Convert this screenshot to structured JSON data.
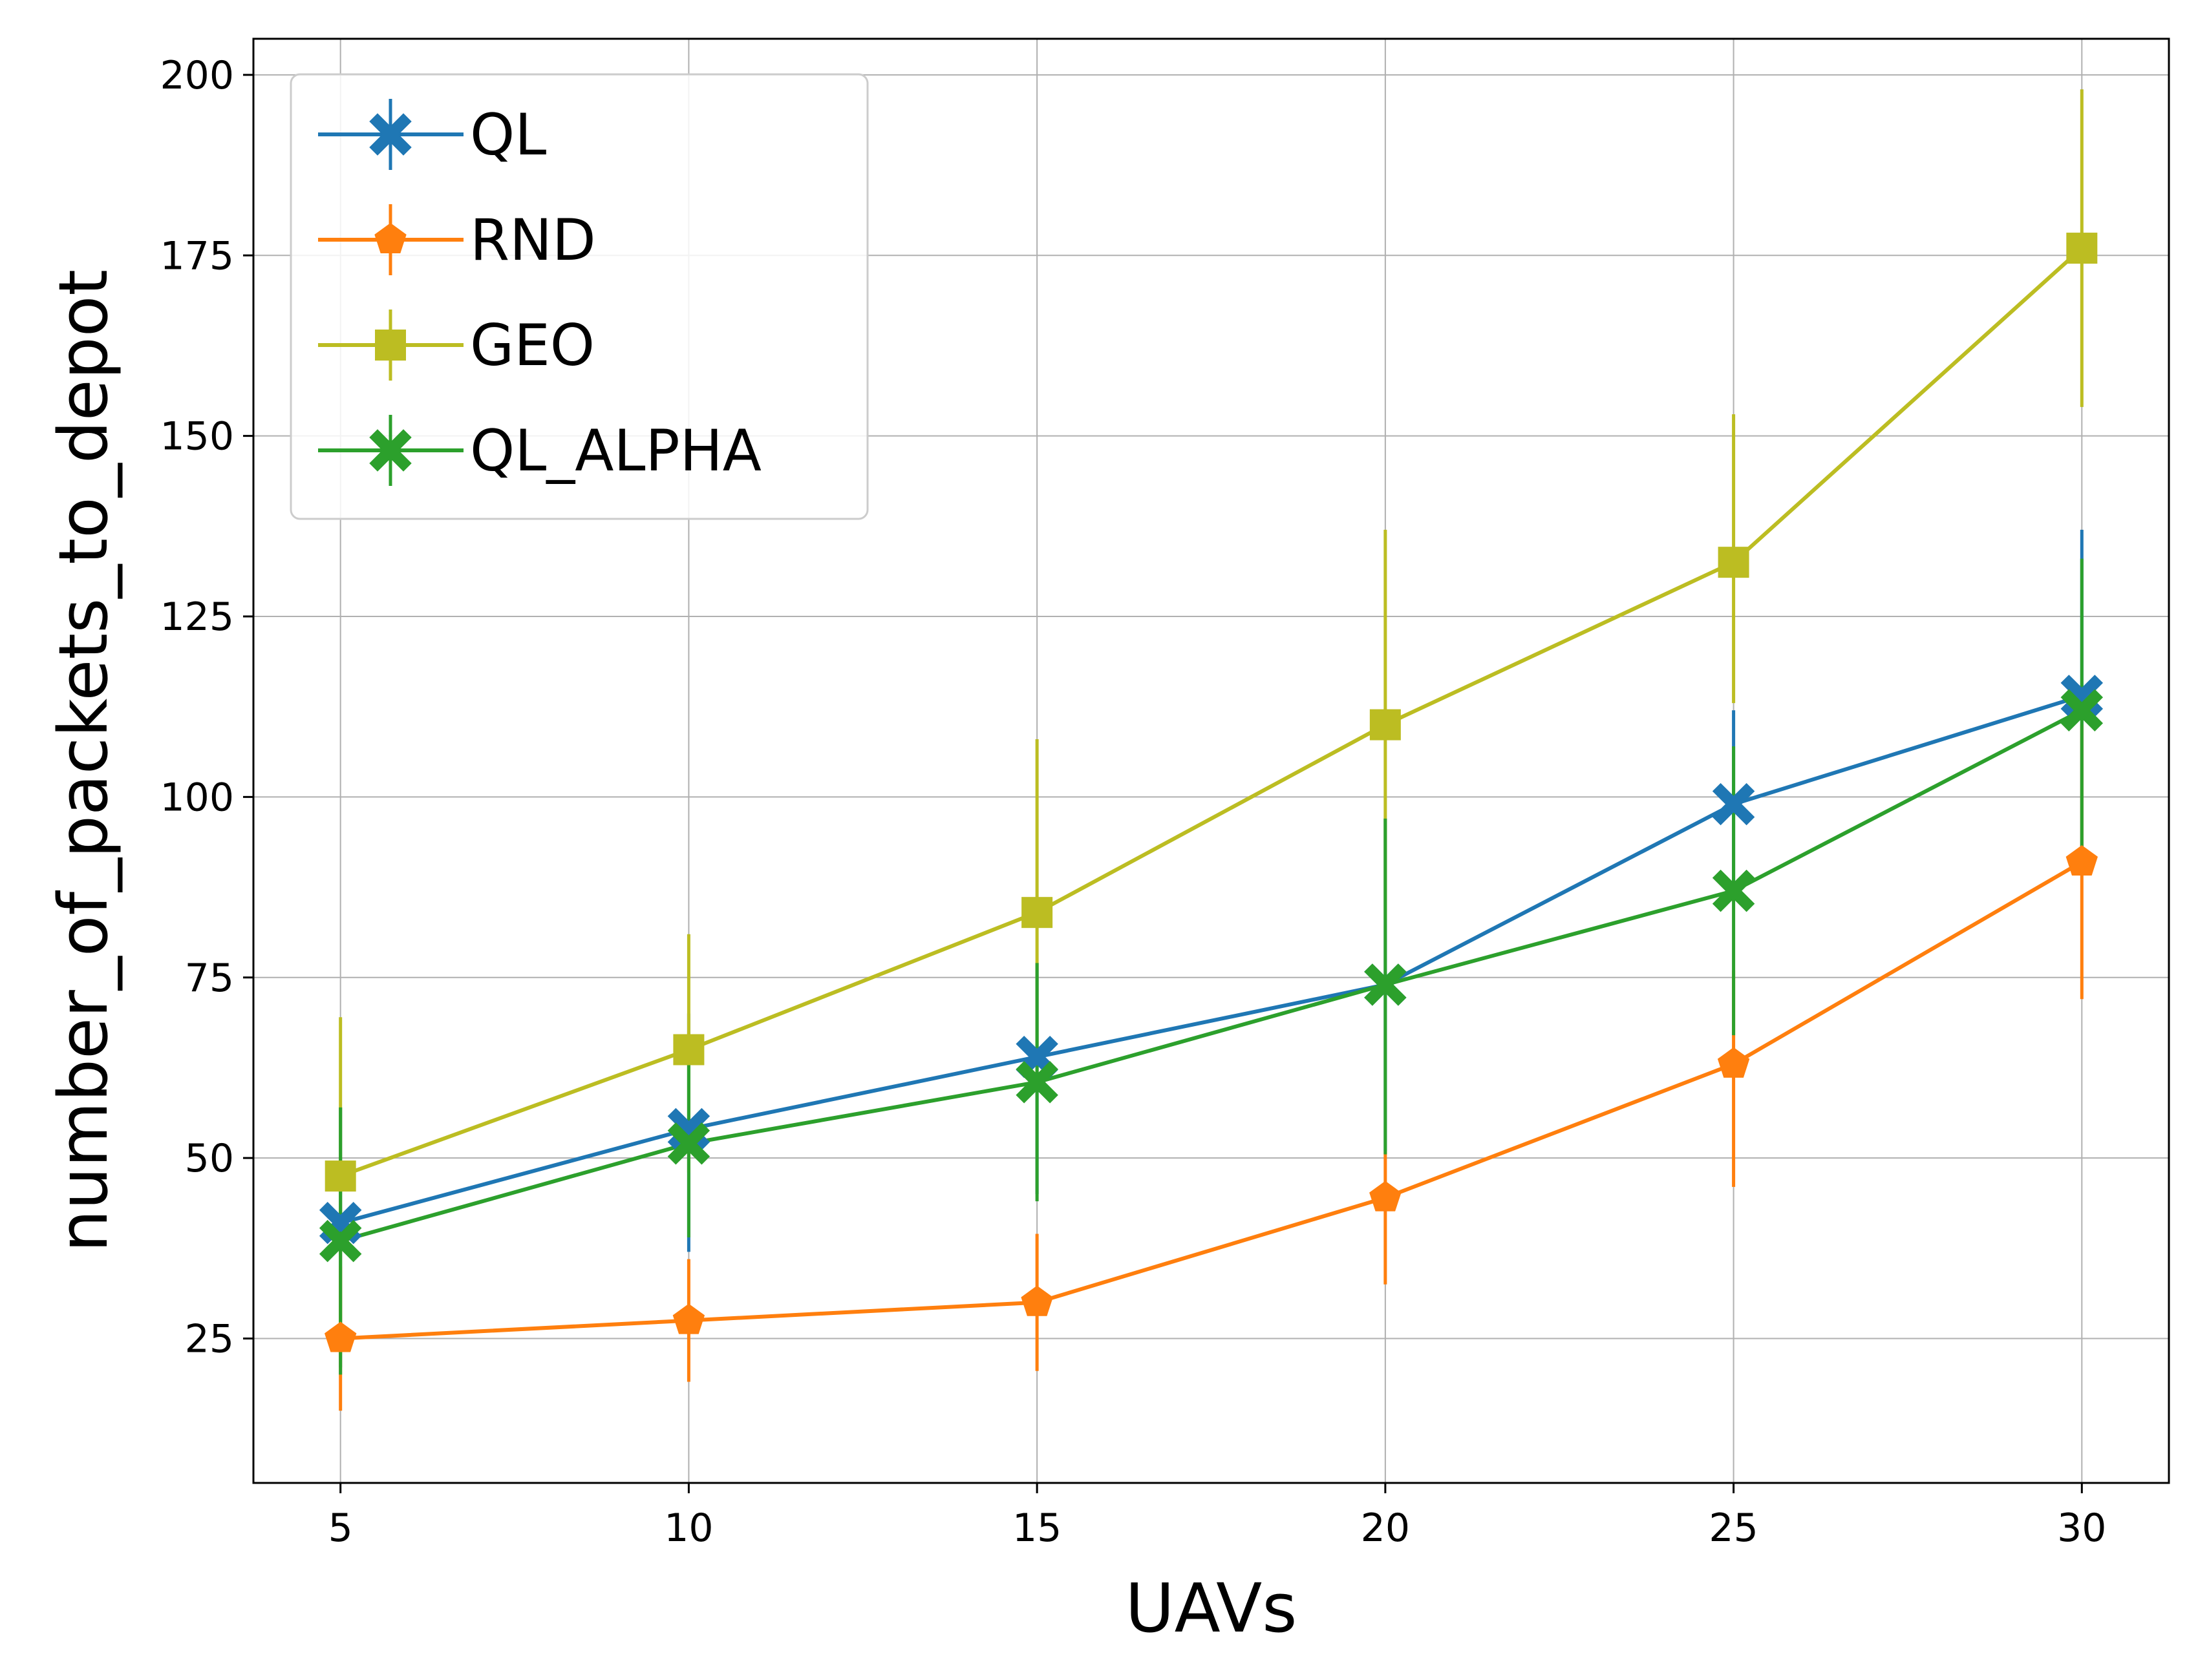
{
  "chart_data": {
    "type": "line",
    "title": "",
    "xlabel": "UAVs",
    "ylabel": "number_of_packets_to_depot",
    "x": [
      5,
      10,
      15,
      20,
      25,
      30
    ],
    "xlim": [
      3.75,
      31.25
    ],
    "ylim": [
      5,
      205
    ],
    "xticks": [
      5,
      10,
      15,
      20,
      25,
      30
    ],
    "yticks": [
      25,
      50,
      75,
      100,
      125,
      150,
      175,
      200
    ],
    "grid": true,
    "legend_position": "top-left",
    "series": [
      {
        "name": "QL",
        "color": "#1f77b4",
        "marker": "x-filled",
        "values": [
          41,
          54,
          64,
          74,
          99,
          114
        ],
        "err_low": [
          21,
          37,
          45,
          51,
          86,
          91
        ],
        "err_high": [
          57,
          70,
          77,
          97,
          112,
          137
        ]
      },
      {
        "name": "RND",
        "color": "#ff7f0e",
        "marker": "pentagon",
        "values": [
          25,
          27.5,
          30,
          44.5,
          63,
          91
        ],
        "err_low": [
          15,
          19,
          20.5,
          32.5,
          46,
          72
        ],
        "err_high": [
          35,
          36,
          39.5,
          51,
          76,
          110
        ]
      },
      {
        "name": "GEO",
        "color": "#bcbd22",
        "marker": "square",
        "values": [
          47.5,
          65,
          84,
          110,
          132.5,
          176
        ],
        "err_low": [
          25.5,
          48,
          60,
          83,
          113,
          154
        ],
        "err_high": [
          69.5,
          81,
          108,
          137,
          153,
          198
        ]
      },
      {
        "name": "QL_ALPHA",
        "color": "#2ca02c",
        "marker": "x-filled",
        "values": [
          38.5,
          52,
          60.5,
          74,
          87,
          112
        ],
        "err_low": [
          20,
          39,
          44,
          50.5,
          67,
          93
        ],
        "err_high": [
          57,
          64,
          77,
          97,
          107,
          133
        ]
      }
    ]
  }
}
